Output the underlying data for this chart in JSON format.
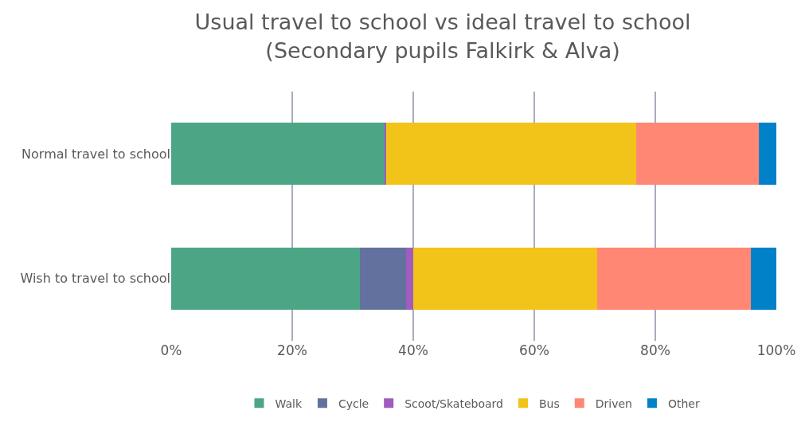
{
  "chart_data": {
    "type": "bar",
    "orientation": "horizontal",
    "stacked": true,
    "title": "Usual travel to school vs ideal travel to school\n(Secondary pupils Falkirk & Alva)",
    "categories": [
      "Normal travel to school",
      "Wish to travel to school"
    ],
    "series": [
      {
        "name": "Walk",
        "color": "#4ca685",
        "values": [
          35.2,
          31.2
        ]
      },
      {
        "name": "Cycle",
        "color": "#63719e",
        "values": [
          0,
          7.6
        ]
      },
      {
        "name": "Scoot/Skateboard",
        "color": "#a05cc0",
        "values": [
          0.3,
          1.2
        ]
      },
      {
        "name": "Bus",
        "color": "#f2c318",
        "values": [
          41.3,
          30.4
        ]
      },
      {
        "name": "Driven",
        "color": "#ff8773",
        "values": [
          20.3,
          25.4
        ]
      },
      {
        "name": "Other",
        "color": "#0081c8",
        "values": [
          2.9,
          4.2
        ]
      }
    ],
    "xlim": [
      0,
      100
    ],
    "xticks": [
      {
        "value": 0,
        "label": "0%"
      },
      {
        "value": 20,
        "label": "20%"
      },
      {
        "value": 40,
        "label": "40%"
      },
      {
        "value": 60,
        "label": "60%"
      },
      {
        "value": 80,
        "label": "80%"
      },
      {
        "value": 100,
        "label": "100%"
      }
    ],
    "grid": "x",
    "legend": "bottom"
  }
}
